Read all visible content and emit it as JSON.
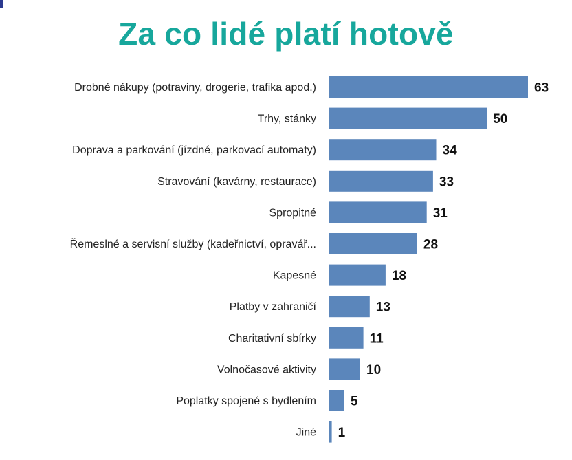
{
  "title": "Za co lidé platí hotově",
  "colors": {
    "title": "#17a79c",
    "bar": "#5b86bb",
    "corner_mark": "#2b3a8f"
  },
  "chart_data": {
    "type": "bar",
    "orientation": "horizontal",
    "categories": [
      "Drobné nákupy (potraviny, drogerie, trafika apod.)",
      "Trhy, stánky",
      "Doprava a parkování (jízdné, parkovací automaty)",
      "Stravování (kavárny, restaurace)",
      "Spropitné",
      "Řemeslné a servisní služby (kadeřnictví, opravář...",
      "Kapesné",
      "Platby v zahraničí",
      "Charitativní sbírky",
      "Volnočasové aktivity",
      "Poplatky spojené s bydlením",
      "Jiné"
    ],
    "values": [
      63,
      50,
      34,
      33,
      31,
      28,
      18,
      13,
      11,
      10,
      5,
      1
    ],
    "xlim": [
      0,
      63
    ],
    "grid": false,
    "data_labels": true
  }
}
